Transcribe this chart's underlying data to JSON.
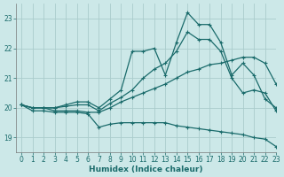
{
  "title": "",
  "xlabel": "Humidex (Indice chaleur)",
  "ylabel": "",
  "background_color": "#cce8e8",
  "grid_color": "#aacccc",
  "line_color": "#1a6b6b",
  "xlim": [
    -0.5,
    23
  ],
  "ylim": [
    18.5,
    23.5
  ],
  "yticks": [
    19,
    20,
    21,
    22,
    23
  ],
  "xticks": [
    0,
    1,
    2,
    3,
    4,
    5,
    6,
    7,
    8,
    9,
    10,
    11,
    12,
    13,
    14,
    15,
    16,
    17,
    18,
    19,
    20,
    21,
    22,
    23
  ],
  "series": {
    "line_high_x": [
      0,
      1,
      2,
      3,
      4,
      5,
      6,
      7,
      8,
      9,
      10,
      11,
      12,
      13,
      14,
      15,
      16,
      17,
      18,
      19,
      20,
      21,
      22,
      23
    ],
    "line_high_y": [
      20.1,
      20.0,
      20.0,
      20.0,
      20.1,
      20.2,
      20.2,
      20.0,
      20.3,
      20.6,
      21.9,
      21.9,
      22.0,
      21.1,
      22.2,
      23.2,
      22.8,
      22.8,
      22.2,
      21.1,
      21.5,
      21.1,
      20.3,
      20.0
    ],
    "line_mid_x": [
      0,
      1,
      2,
      3,
      4,
      5,
      6,
      7,
      8,
      9,
      10,
      11,
      12,
      13,
      14,
      15,
      16,
      17,
      18,
      19,
      20,
      21,
      22,
      23
    ],
    "line_mid_y": [
      20.1,
      20.0,
      20.0,
      20.0,
      20.05,
      20.1,
      20.1,
      19.9,
      20.15,
      20.35,
      20.6,
      21.0,
      21.3,
      21.5,
      21.9,
      22.55,
      22.3,
      22.3,
      21.9,
      21.0,
      20.5,
      20.6,
      20.5,
      19.9
    ],
    "line_low_x": [
      0,
      1,
      2,
      3,
      4,
      5,
      6,
      7,
      8,
      9,
      10,
      11,
      12,
      13,
      14,
      15,
      16,
      17,
      18,
      19,
      20,
      21,
      22,
      23
    ],
    "line_low_y": [
      20.1,
      20.0,
      20.0,
      19.9,
      19.9,
      19.9,
      19.85,
      19.85,
      20.0,
      20.2,
      20.35,
      20.5,
      20.65,
      20.8,
      21.0,
      21.2,
      21.3,
      21.45,
      21.5,
      21.6,
      21.7,
      21.7,
      21.5,
      20.8
    ],
    "line_down_x": [
      0,
      1,
      2,
      3,
      4,
      5,
      6,
      7,
      8,
      9,
      10,
      11,
      12,
      13,
      14,
      15,
      16,
      17,
      18,
      19,
      20,
      21,
      22,
      23
    ],
    "line_down_y": [
      20.1,
      19.9,
      19.9,
      19.85,
      19.85,
      19.85,
      19.8,
      19.35,
      19.45,
      19.5,
      19.5,
      19.5,
      19.5,
      19.5,
      19.4,
      19.35,
      19.3,
      19.25,
      19.2,
      19.15,
      19.1,
      19.0,
      18.95,
      18.7
    ]
  },
  "marker": "+",
  "markersize": 3,
  "linewidth": 0.9
}
